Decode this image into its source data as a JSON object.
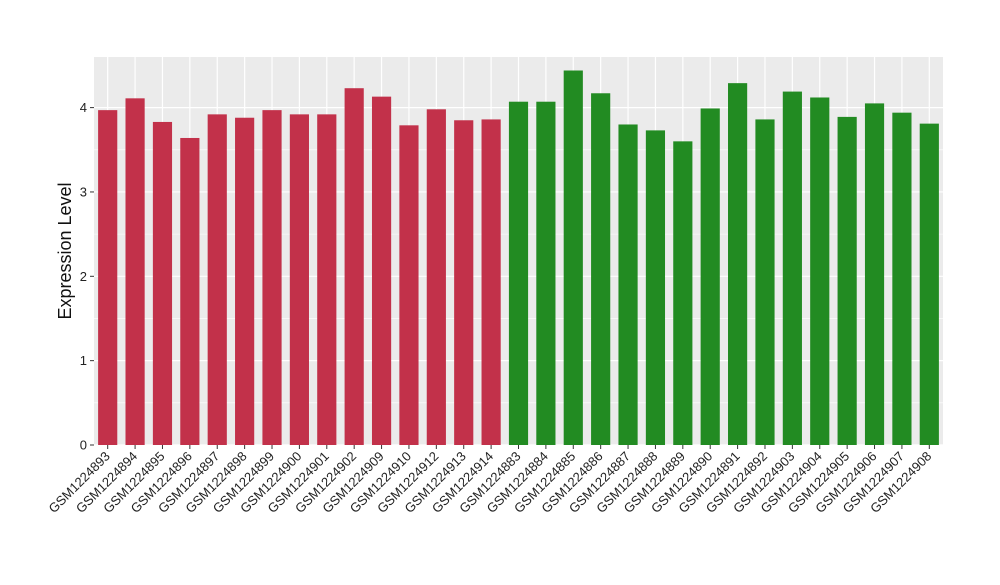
{
  "chart_data": {
    "type": "bar",
    "ylabel": "Expression Level",
    "xlabel": "",
    "title": "",
    "ylim": [
      0,
      4.6
    ],
    "yticks": [
      0,
      1,
      2,
      3,
      4
    ],
    "grid": true,
    "categories": [
      "GSM1224893",
      "GSM1224894",
      "GSM1224895",
      "GSM1224896",
      "GSM1224897",
      "GSM1224898",
      "GSM1224899",
      "GSM1224900",
      "GSM1224901",
      "GSM1224902",
      "GSM1224909",
      "GSM1224910",
      "GSM1224912",
      "GSM1224913",
      "GSM1224914",
      "GSM1224883",
      "GSM1224884",
      "GSM1224885",
      "GSM1224886",
      "GSM1224887",
      "GSM1224888",
      "GSM1224889",
      "GSM1224890",
      "GSM1224891",
      "GSM1224892",
      "GSM1224903",
      "GSM1224904",
      "GSM1224905",
      "GSM1224906",
      "GSM1224907",
      "GSM1224908"
    ],
    "values": [
      3.97,
      4.11,
      3.83,
      3.64,
      3.92,
      3.88,
      3.97,
      3.92,
      3.92,
      4.23,
      4.13,
      3.79,
      3.98,
      3.85,
      3.86,
      4.07,
      4.07,
      4.44,
      4.17,
      3.8,
      3.73,
      3.6,
      3.99,
      4.29,
      3.86,
      4.19,
      4.12,
      3.89,
      4.05,
      3.94,
      3.81
    ],
    "bar_colors": [
      "#C2314A",
      "#C2314A",
      "#C2314A",
      "#C2314A",
      "#C2314A",
      "#C2314A",
      "#C2314A",
      "#C2314A",
      "#C2314A",
      "#C2314A",
      "#C2314A",
      "#C2314A",
      "#C2314A",
      "#C2314A",
      "#C2314A",
      "#228B22",
      "#228B22",
      "#228B22",
      "#228B22",
      "#228B22",
      "#228B22",
      "#228B22",
      "#228B22",
      "#228B22",
      "#228B22",
      "#228B22",
      "#228B22",
      "#228B22",
      "#228B22",
      "#228B22",
      "#228B22"
    ],
    "panel_background": "#EBEBEB",
    "gridline_color": "#FFFFFF"
  }
}
